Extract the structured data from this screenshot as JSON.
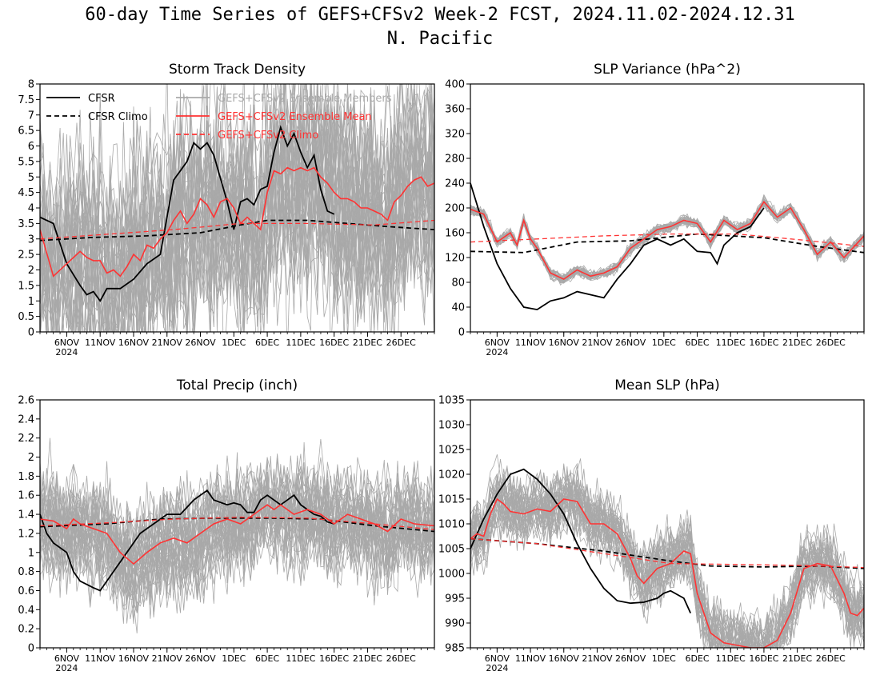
{
  "figure": {
    "title": "60-day Time Series of GEFS+CFSv2 Week-2 FCST, 2024.11.02-2024.12.31",
    "subtitle": "N. Pacific",
    "x_tick_labels": [
      "6NOV",
      "11NOV",
      "16NOV",
      "21NOV",
      "26NOV",
      "1DEC",
      "6DEC",
      "11DEC",
      "16DEC",
      "21DEC",
      "26DEC"
    ],
    "x_year_label": "2024",
    "legend": [
      {
        "label": "CFSR",
        "color": "#000000",
        "dash": "solid"
      },
      {
        "label": "CFSR Climo",
        "color": "#000000",
        "dash": "dashed"
      },
      {
        "label": "GEFS+CFSv2 Ensemble Members",
        "color": "#a9a9a9",
        "dash": "solid"
      },
      {
        "label": "GEFS+CFSv2 Ensemble Mean",
        "color": "#ff3333",
        "dash": "solid"
      },
      {
        "label": "GEFS+CFSv2 Climo",
        "color": "#ff3333",
        "dash": "dashed"
      }
    ],
    "colors": {
      "cfsr": "#000000",
      "climo": "#000000",
      "members": "#a9a9a9",
      "mean": "#ff3333",
      "gefs_climo": "#ff3333"
    }
  },
  "chart_data": [
    {
      "type": "line",
      "title": "Storm Track Density",
      "ylim": [
        0,
        8
      ],
      "yticks": [
        0,
        0.5,
        1,
        1.5,
        2,
        2.5,
        3,
        3.5,
        4,
        4.5,
        5,
        5.5,
        6,
        6.5,
        7,
        7.5,
        8
      ],
      "xlim": [
        "2024-11-02",
        "2024-12-31"
      ],
      "legend_position": "top",
      "series": [
        {
          "name": "CFSR",
          "x": [
            "2024-11-02",
            "2024-11-04",
            "2024-11-06",
            "2024-11-08",
            "2024-11-09",
            "2024-11-10",
            "2024-11-11",
            "2024-11-12",
            "2024-11-14",
            "2024-11-16",
            "2024-11-18",
            "2024-11-20",
            "2024-11-22",
            "2024-11-24",
            "2024-11-25",
            "2024-11-26",
            "2024-11-27",
            "2024-11-28",
            "2024-11-30",
            "2024-12-01",
            "2024-12-02",
            "2024-12-03",
            "2024-12-04",
            "2024-12-05",
            "2024-12-06",
            "2024-12-07",
            "2024-12-08",
            "2024-12-09",
            "2024-12-10",
            "2024-12-11",
            "2024-12-12",
            "2024-12-13",
            "2024-12-14",
            "2024-12-15",
            "2024-12-16"
          ],
          "y": [
            3.7,
            3.5,
            2.2,
            1.5,
            1.2,
            1.3,
            1.0,
            1.4,
            1.4,
            1.7,
            2.2,
            2.5,
            4.9,
            5.5,
            6.1,
            5.9,
            6.1,
            5.7,
            4.2,
            3.3,
            4.2,
            4.3,
            4.1,
            4.6,
            4.7,
            5.8,
            6.6,
            6.0,
            6.4,
            5.8,
            5.3,
            5.7,
            4.6,
            3.9,
            3.8
          ]
        },
        {
          "name": "CFSR Climo",
          "x": [
            "2024-11-02",
            "2024-11-10",
            "2024-11-18",
            "2024-11-26",
            "2024-12-02",
            "2024-12-06",
            "2024-12-12",
            "2024-12-18",
            "2024-12-24",
            "2024-12-31"
          ],
          "y": [
            2.95,
            3.05,
            3.1,
            3.2,
            3.45,
            3.6,
            3.6,
            3.5,
            3.4,
            3.3
          ]
        },
        {
          "name": "GEFS+CFSv2 Ensemble Mean",
          "x": [
            "2024-11-02",
            "2024-11-04",
            "2024-11-06",
            "2024-11-07",
            "2024-11-08",
            "2024-11-09",
            "2024-11-10",
            "2024-11-11",
            "2024-11-12",
            "2024-11-13",
            "2024-11-14",
            "2024-11-15",
            "2024-11-16",
            "2024-11-17",
            "2024-11-18",
            "2024-11-19",
            "2024-11-20",
            "2024-11-21",
            "2024-11-22",
            "2024-11-23",
            "2024-11-24",
            "2024-11-25",
            "2024-11-26",
            "2024-11-27",
            "2024-11-28",
            "2024-11-29",
            "2024-11-30",
            "2024-12-01",
            "2024-12-02",
            "2024-12-03",
            "2024-12-04",
            "2024-12-05",
            "2024-12-06",
            "2024-12-07",
            "2024-12-08",
            "2024-12-09",
            "2024-12-10",
            "2024-12-11",
            "2024-12-12",
            "2024-12-13",
            "2024-12-14",
            "2024-12-15",
            "2024-12-16",
            "2024-12-17",
            "2024-12-18",
            "2024-12-19",
            "2024-12-20",
            "2024-12-21",
            "2024-12-22",
            "2024-12-23",
            "2024-12-24",
            "2024-12-25",
            "2024-12-26",
            "2024-12-27",
            "2024-12-28",
            "2024-12-29",
            "2024-12-30",
            "2024-12-31"
          ],
          "y": [
            3.3,
            1.8,
            2.2,
            2.4,
            2.6,
            2.4,
            2.3,
            2.3,
            1.9,
            2.0,
            1.8,
            2.1,
            2.5,
            2.3,
            2.8,
            2.7,
            3.0,
            3.2,
            3.6,
            3.9,
            3.5,
            3.8,
            4.3,
            4.1,
            3.7,
            4.2,
            4.3,
            4.0,
            3.5,
            3.7,
            3.5,
            3.3,
            4.5,
            5.2,
            5.1,
            5.3,
            5.2,
            5.3,
            5.2,
            5.3,
            5.0,
            4.8,
            4.5,
            4.3,
            4.3,
            4.2,
            4.0,
            4.0,
            3.9,
            3.8,
            3.6,
            4.2,
            4.4,
            4.7,
            4.9,
            5.0,
            4.7,
            4.8
          ]
        },
        {
          "name": "GEFS+CFSv2 Climo",
          "x": [
            "2024-11-02",
            "2024-11-12",
            "2024-11-22",
            "2024-12-02",
            "2024-12-12",
            "2024-12-22",
            "2024-12-31"
          ],
          "y": [
            3.0,
            3.15,
            3.3,
            3.5,
            3.5,
            3.45,
            3.6
          ]
        }
      ]
    },
    {
      "type": "line",
      "title": "SLP Variance (hPa^2)",
      "ylim": [
        0,
        400
      ],
      "yticks": [
        0,
        40,
        80,
        120,
        160,
        200,
        240,
        280,
        320,
        360,
        400
      ],
      "xlim": [
        "2024-11-02",
        "2024-12-31"
      ],
      "series": [
        {
          "name": "CFSR",
          "x": [
            "2024-11-02",
            "2024-11-04",
            "2024-11-06",
            "2024-11-08",
            "2024-11-10",
            "2024-11-12",
            "2024-11-14",
            "2024-11-16",
            "2024-11-18",
            "2024-11-20",
            "2024-11-22",
            "2024-11-24",
            "2024-11-26",
            "2024-11-28",
            "2024-11-30",
            "2024-12-02",
            "2024-12-04",
            "2024-12-06",
            "2024-12-08",
            "2024-12-09",
            "2024-12-10",
            "2024-12-12",
            "2024-12-14",
            "2024-12-16"
          ],
          "y": [
            240,
            170,
            110,
            70,
            40,
            36,
            50,
            55,
            65,
            60,
            55,
            85,
            110,
            140,
            150,
            140,
            150,
            130,
            128,
            110,
            140,
            160,
            170,
            200
          ]
        },
        {
          "name": "CFSR Climo",
          "x": [
            "2024-11-02",
            "2024-11-10",
            "2024-11-18",
            "2024-11-26",
            "2024-12-06",
            "2024-12-16",
            "2024-12-24",
            "2024-12-31"
          ],
          "y": [
            130,
            128,
            145,
            147,
            158,
            152,
            138,
            128
          ]
        },
        {
          "name": "GEFS+CFSv2 Ensemble Mean",
          "x": [
            "2024-11-02",
            "2024-11-04",
            "2024-11-06",
            "2024-11-08",
            "2024-11-09",
            "2024-11-10",
            "2024-11-11",
            "2024-11-12",
            "2024-11-14",
            "2024-11-16",
            "2024-11-18",
            "2024-11-20",
            "2024-11-22",
            "2024-11-24",
            "2024-11-26",
            "2024-11-28",
            "2024-11-30",
            "2024-12-02",
            "2024-12-04",
            "2024-12-06",
            "2024-12-08",
            "2024-12-10",
            "2024-12-12",
            "2024-12-14",
            "2024-12-16",
            "2024-12-18",
            "2024-12-20",
            "2024-12-22",
            "2024-12-24",
            "2024-12-26",
            "2024-12-28",
            "2024-12-31"
          ],
          "y": [
            198,
            190,
            145,
            160,
            140,
            180,
            150,
            135,
            95,
            85,
            100,
            90,
            95,
            105,
            135,
            150,
            165,
            170,
            180,
            175,
            145,
            180,
            165,
            175,
            210,
            185,
            200,
            165,
            125,
            145,
            120,
            155
          ]
        },
        {
          "name": "GEFS+CFSv2 Climo",
          "x": [
            "2024-11-02",
            "2024-11-12",
            "2024-11-22",
            "2024-12-02",
            "2024-12-12",
            "2024-12-22",
            "2024-12-31"
          ],
          "y": [
            145,
            150,
            155,
            158,
            158,
            148,
            138
          ]
        }
      ]
    },
    {
      "type": "line",
      "title": "Total Precip (inch)",
      "ylim": [
        0,
        2.6
      ],
      "yticks": [
        0,
        0.2,
        0.4,
        0.6,
        0.8,
        1,
        1.2,
        1.4,
        1.6,
        1.8,
        2,
        2.2,
        2.4,
        2.6
      ],
      "xlim": [
        "2024-11-02",
        "2024-12-31"
      ],
      "series": [
        {
          "name": "CFSR",
          "x": [
            "2024-11-02",
            "2024-11-03",
            "2024-11-04",
            "2024-11-06",
            "2024-11-07",
            "2024-11-08",
            "2024-11-10",
            "2024-11-11",
            "2024-11-13",
            "2024-11-15",
            "2024-11-17",
            "2024-11-19",
            "2024-11-21",
            "2024-11-23",
            "2024-11-25",
            "2024-11-26",
            "2024-11-27",
            "2024-11-28",
            "2024-11-30",
            "2024-12-01",
            "2024-12-02",
            "2024-12-03",
            "2024-12-04",
            "2024-12-05",
            "2024-12-06",
            "2024-12-07",
            "2024-12-08",
            "2024-12-09",
            "2024-12-10",
            "2024-12-11",
            "2024-12-12",
            "2024-12-13",
            "2024-12-14",
            "2024-12-15",
            "2024-12-16"
          ],
          "y": [
            1.4,
            1.2,
            1.1,
            1.0,
            0.8,
            0.7,
            0.63,
            0.6,
            0.8,
            1.0,
            1.2,
            1.3,
            1.4,
            1.4,
            1.55,
            1.6,
            1.65,
            1.55,
            1.5,
            1.52,
            1.5,
            1.42,
            1.42,
            1.55,
            1.6,
            1.55,
            1.5,
            1.55,
            1.6,
            1.5,
            1.45,
            1.4,
            1.38,
            1.32,
            1.3
          ]
        },
        {
          "name": "CFSR Climo",
          "x": [
            "2024-11-02",
            "2024-11-12",
            "2024-11-20",
            "2024-11-28",
            "2024-12-06",
            "2024-12-14",
            "2024-12-22",
            "2024-12-31"
          ],
          "y": [
            1.27,
            1.3,
            1.35,
            1.36,
            1.36,
            1.35,
            1.28,
            1.22
          ]
        },
        {
          "name": "GEFS+CFSv2 Ensemble Mean",
          "x": [
            "2024-11-02",
            "2024-11-04",
            "2024-11-06",
            "2024-11-07",
            "2024-11-08",
            "2024-11-10",
            "2024-11-12",
            "2024-11-14",
            "2024-11-16",
            "2024-11-18",
            "2024-11-20",
            "2024-11-22",
            "2024-11-24",
            "2024-11-26",
            "2024-11-28",
            "2024-11-30",
            "2024-12-02",
            "2024-12-04",
            "2024-12-06",
            "2024-12-07",
            "2024-12-08",
            "2024-12-10",
            "2024-12-12",
            "2024-12-14",
            "2024-12-16",
            "2024-12-18",
            "2024-12-20",
            "2024-12-22",
            "2024-12-24",
            "2024-12-26",
            "2024-12-28",
            "2024-12-31"
          ],
          "y": [
            1.35,
            1.33,
            1.25,
            1.35,
            1.3,
            1.25,
            1.2,
            1.0,
            0.88,
            1.0,
            1.1,
            1.15,
            1.1,
            1.2,
            1.3,
            1.35,
            1.3,
            1.4,
            1.5,
            1.45,
            1.5,
            1.4,
            1.45,
            1.4,
            1.3,
            1.4,
            1.35,
            1.3,
            1.22,
            1.35,
            1.3,
            1.28
          ]
        },
        {
          "name": "GEFS+CFSv2 Climo",
          "x": [
            "2024-11-02",
            "2024-11-12",
            "2024-11-22",
            "2024-12-02",
            "2024-12-12",
            "2024-12-22",
            "2024-12-31"
          ],
          "y": [
            1.28,
            1.31,
            1.35,
            1.37,
            1.36,
            1.3,
            1.24
          ]
        }
      ]
    },
    {
      "type": "line",
      "title": "Mean SLP (hPa)",
      "ylim": [
        985,
        1035
      ],
      "yticks": [
        985,
        990,
        995,
        1000,
        1005,
        1010,
        1015,
        1020,
        1025,
        1030,
        1035
      ],
      "xlim": [
        "2024-11-02",
        "2024-12-31"
      ],
      "series": [
        {
          "name": "CFSR",
          "x": [
            "2024-11-02",
            "2024-11-04",
            "2024-11-06",
            "2024-11-08",
            "2024-11-10",
            "2024-11-12",
            "2024-11-14",
            "2024-11-16",
            "2024-11-18",
            "2024-11-20",
            "2024-11-22",
            "2024-11-24",
            "2024-11-26",
            "2024-11-28",
            "2024-11-30",
            "2024-12-01",
            "2024-12-02",
            "2024-12-04",
            "2024-12-05"
          ],
          "y": [
            1005,
            1011,
            1016,
            1020,
            1021,
            1019,
            1016,
            1012,
            1006,
            1001,
            997,
            994.5,
            994,
            994.2,
            995,
            996,
            996.5,
            995,
            992
          ]
        },
        {
          "name": "CFSR Climo",
          "x": [
            "2024-11-02",
            "2024-11-12",
            "2024-11-22",
            "2024-12-02",
            "2024-12-08",
            "2024-12-16",
            "2024-12-24",
            "2024-12-31"
          ],
          "y": [
            1007,
            1006,
            1004.5,
            1002.5,
            1001.5,
            1001.3,
            1001.5,
            1001
          ]
        },
        {
          "name": "GEFS+CFSv2 Ensemble Mean",
          "x": [
            "2024-11-02",
            "2024-11-03",
            "2024-11-04",
            "2024-11-05",
            "2024-11-06",
            "2024-11-07",
            "2024-11-08",
            "2024-11-10",
            "2024-11-12",
            "2024-11-14",
            "2024-11-16",
            "2024-11-18",
            "2024-11-20",
            "2024-11-22",
            "2024-11-24",
            "2024-11-26",
            "2024-11-27",
            "2024-11-28",
            "2024-11-30",
            "2024-12-02",
            "2024-12-04",
            "2024-12-05",
            "2024-12-06",
            "2024-12-08",
            "2024-12-10",
            "2024-12-12",
            "2024-12-14",
            "2024-12-16",
            "2024-12-18",
            "2024-12-20",
            "2024-12-22",
            "2024-12-24",
            "2024-12-26",
            "2024-12-28",
            "2024-12-29",
            "2024-12-30",
            "2024-12-31"
          ],
          "y": [
            1007,
            1008,
            1007.5,
            1012,
            1015,
            1014,
            1012.5,
            1012,
            1013,
            1012.5,
            1015,
            1014.5,
            1010,
            1010,
            1008,
            1003,
            999.5,
            998,
            1001,
            1002,
            1004.5,
            1004,
            996,
            988,
            986,
            985.5,
            985,
            985,
            986.5,
            992,
            1001,
            1002,
            1001.5,
            996,
            992,
            991.5,
            993
          ]
        },
        {
          "name": "GEFS+CFSv2 Climo",
          "x": [
            "2024-11-02",
            "2024-11-12",
            "2024-11-22",
            "2024-12-02",
            "2024-12-12",
            "2024-12-22",
            "2024-12-31"
          ],
          "y": [
            1007,
            1006,
            1004,
            1002,
            1001.8,
            1001.6,
            1001.2
          ]
        }
      ]
    }
  ]
}
